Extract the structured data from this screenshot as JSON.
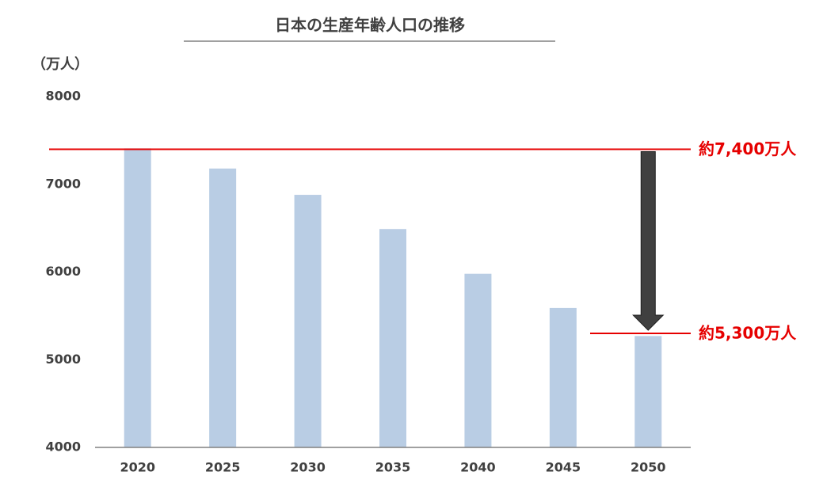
{
  "chart_data": {
    "type": "bar",
    "title": "日本の生産年齢人口の推移",
    "y_label": "（万人）",
    "categories": [
      "2020",
      "2025",
      "2030",
      "2035",
      "2040",
      "2045",
      "2050"
    ],
    "values": [
      7410,
      7180,
      6880,
      6490,
      5980,
      5590,
      5270
    ],
    "color": "#b9cde4",
    "ylim": [
      4000,
      8000
    ],
    "yticks": [
      4000,
      5000,
      6000,
      7000,
      8000
    ],
    "grid": false,
    "annotations": [
      {
        "text": "約7,400万人",
        "value": 7400,
        "color": "#e60000"
      },
      {
        "text": "約5,300万人",
        "value": 5300,
        "color": "#e60000"
      }
    ]
  }
}
